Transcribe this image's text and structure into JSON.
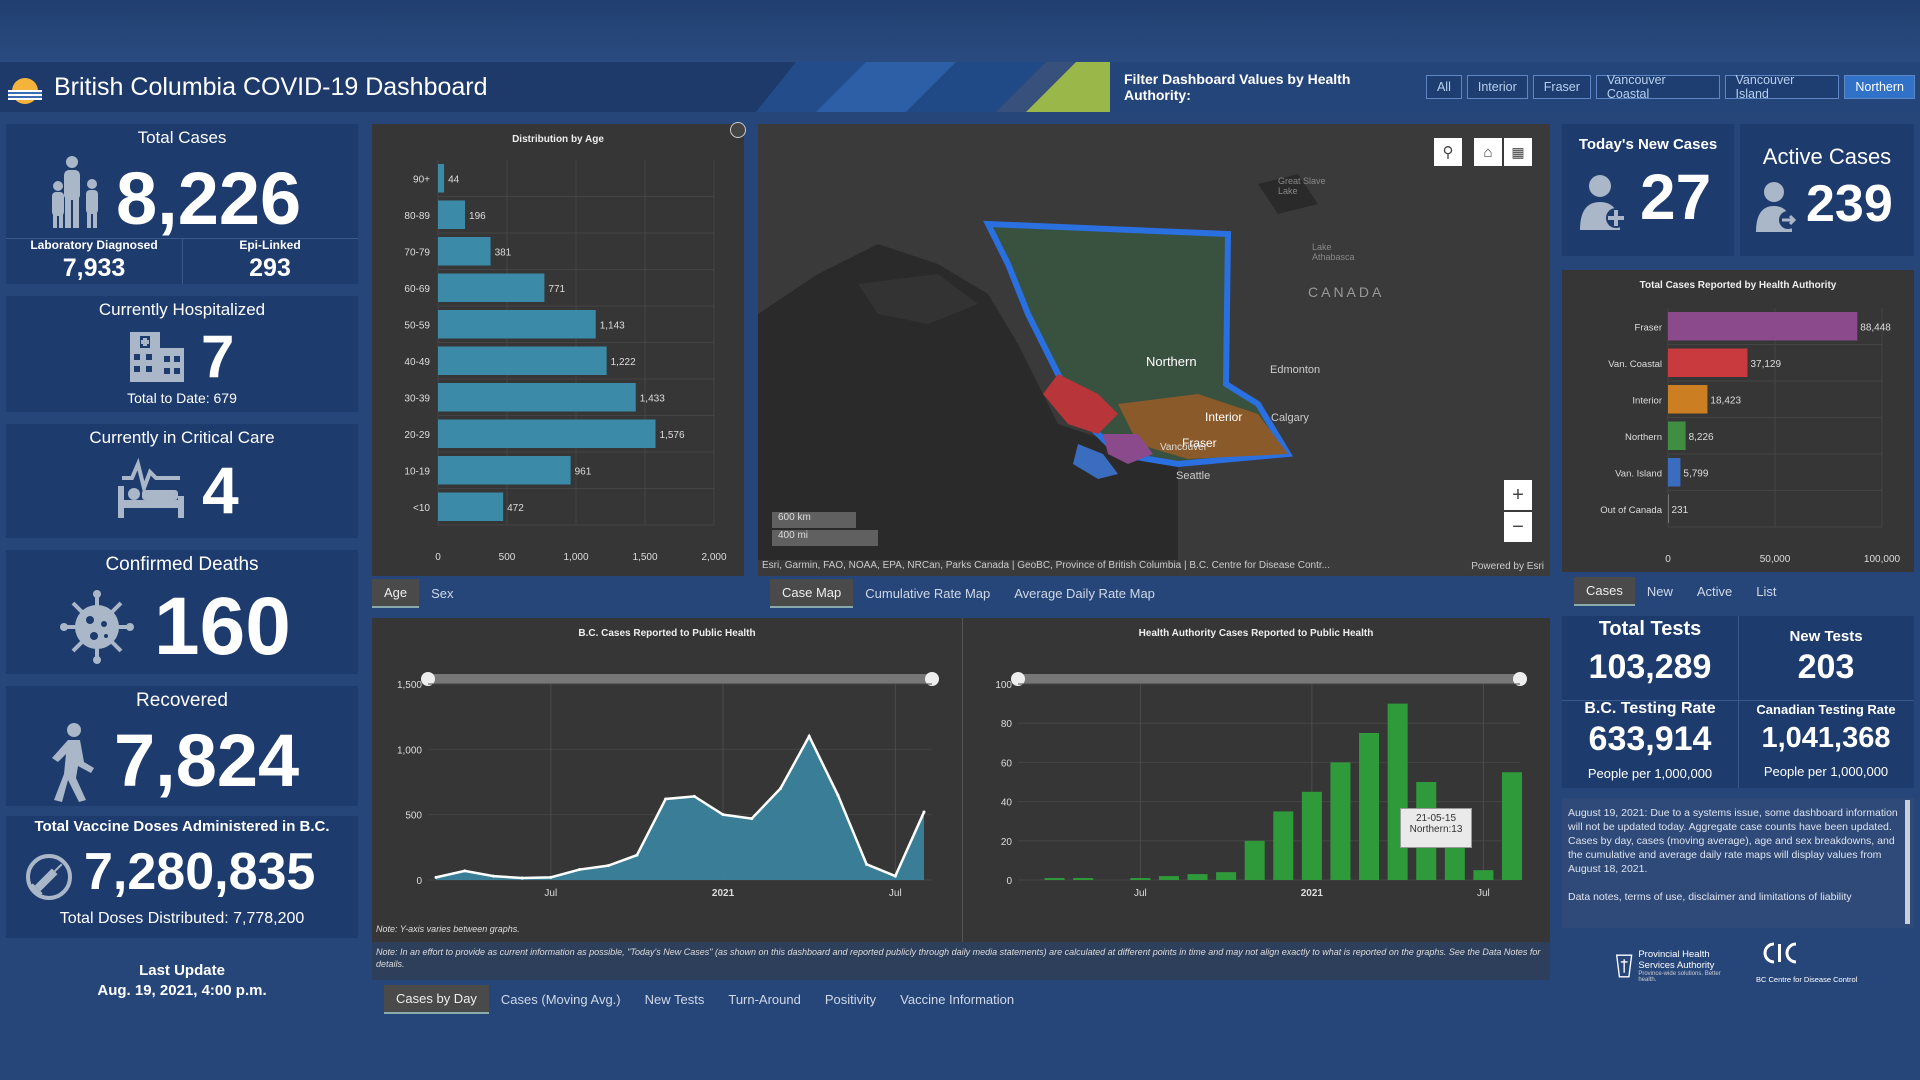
{
  "header": {
    "title": "British Columbia COVID-19 Dashboard",
    "filter_label": "Filter Dashboard Values by Health Authority:",
    "filters": [
      "All",
      "Interior",
      "Fraser",
      "Vancouver Coastal",
      "Vancouver Island",
      "Northern"
    ],
    "active_filter": "Northern"
  },
  "left": {
    "total_cases": {
      "label": "Total Cases",
      "value": "8,226",
      "lab_label": "Laboratory Diagnosed",
      "lab_value": "7,933",
      "epi_label": "Epi-Linked",
      "epi_value": "293"
    },
    "hospitalized": {
      "label": "Currently Hospitalized",
      "value": "7",
      "sub": "Total to Date: 679"
    },
    "critical": {
      "label": "Currently in Critical Care",
      "value": "4"
    },
    "deaths": {
      "label": "Confirmed Deaths",
      "value": "160"
    },
    "recovered": {
      "label": "Recovered",
      "value": "7,824"
    },
    "vaccine": {
      "label": "Total Vaccine Doses Administered in B.C.",
      "value": "7,280,835",
      "sub": "Total Doses Distributed: 7,778,200"
    },
    "last_update": {
      "label": "Last Update",
      "value": "Aug. 19, 2021, 4:00 p.m."
    }
  },
  "age_chart": {
    "tabs": [
      "Age",
      "Sex"
    ],
    "active_tab": "Age"
  },
  "map": {
    "labels": {
      "canada": "CANADA",
      "northern": "Northern",
      "interior": "Interior",
      "fraser": "Fraser",
      "vancouver": "Vancouver",
      "edmonton": "Edmonton",
      "calgary": "Calgary",
      "seattle": "Seattle",
      "great_slave": "Great Slave Lake",
      "athabasca": "Lake Athabasca"
    },
    "scale_km": "600 km",
    "scale_mi": "400 mi",
    "attribution": "Esri, Garmin, FAO, NOAA, EPA, NRCan, Parks Canada | GeoBC, Province of British Columbia | B.C. Centre for Disease Contr...",
    "powered": "Powered by Esri",
    "tabs": [
      "Case Map",
      "Cumulative Rate Map",
      "Average Daily Rate Map"
    ],
    "active_tab": "Case Map"
  },
  "right": {
    "new_cases": {
      "label": "Today's New Cases",
      "value": "27"
    },
    "active_cases": {
      "label": "Active Cases",
      "value": "239"
    },
    "ha_tabs": [
      "Cases",
      "New",
      "Active",
      "List"
    ],
    "ha_active_tab": "Cases",
    "total_tests": {
      "label": "Total Tests",
      "value": "103,289"
    },
    "new_tests": {
      "label": "New Tests",
      "value": "203"
    },
    "bc_rate": {
      "label": "B.C. Testing Rate",
      "value": "633,914",
      "sub": "People per 1,000,000"
    },
    "cdn_rate": {
      "label": "Canadian Testing Rate",
      "value": "1,041,368",
      "sub": "People per 1,000,000"
    },
    "notice": "August 19, 2021: Due to a systems issue, some dashboard information will not be updated today. Aggregate case counts have been updated. Cases by day, cases (moving average), age and sex breakdowns, and the cumulative and average daily rate maps will display values from August 18, 2021.",
    "notice_link": "Data notes, terms of use, disclaimer and limitations of liability",
    "logo1": "Provincial Health Services Authority",
    "logo1_sub": "Province-wide solutions. Better health.",
    "logo2": "BC Centre for Disease Control"
  },
  "bottom": {
    "note1": "Note: Y-axis varies between graphs.",
    "note2": "Note: In an effort to provide as current information as possible, \"Today's New Cases\" (as shown on this dashboard and reported publicly through daily media statements) are calculated at different points in time and may not align exactly to what is reported on the graphs. See the Data Notes for details.",
    "tabs": [
      "Cases by Day",
      "Cases (Moving Avg.)",
      "New Tests",
      "Turn-Around",
      "Positivity",
      "Vaccine Information"
    ],
    "active_tab": "Cases by Day",
    "tooltip_date": "21-05-15",
    "tooltip_value": "Northern:13"
  },
  "chart_data": [
    {
      "type": "bar",
      "title": "Distribution by Age",
      "categories": [
        "90+",
        "80-89",
        "70-79",
        "60-69",
        "50-59",
        "40-49",
        "30-39",
        "20-29",
        "10-19",
        "<10"
      ],
      "values": [
        44,
        196,
        381,
        771,
        1143,
        1222,
        1433,
        1576,
        961,
        472
      ],
      "labels": [
        "44",
        "196",
        "381",
        "771",
        "1,143",
        "1,222",
        "1,433",
        "1,576",
        "961",
        "472"
      ],
      "xlim": [
        0,
        2000
      ],
      "xticks": [
        "0",
        "500",
        "1,000",
        "1,500",
        "2,000"
      ],
      "orientation": "horizontal",
      "color": "#3b8aa8"
    },
    {
      "type": "bar",
      "title": "Total Cases Reported by Health Authority",
      "categories": [
        "Fraser",
        "Van. Coastal",
        "Interior",
        "Northern",
        "Van. Island",
        "Out of Canada"
      ],
      "values": [
        88448,
        37129,
        18423,
        8226,
        5799,
        231
      ],
      "labels": [
        "88,448",
        "37,129",
        "18,423",
        "8,226",
        "5,799",
        "231"
      ],
      "colors": [
        "#8a4a8c",
        "#c93a3f",
        "#cc7f22",
        "#3f8e42",
        "#3a6dbf",
        "#777777"
      ],
      "xlim": [
        0,
        100000
      ],
      "xticks": [
        "0",
        "50,000",
        "100,000"
      ],
      "orientation": "horizontal"
    },
    {
      "type": "area",
      "title": "B.C. Cases Reported to Public Health",
      "x": [
        "2020-03",
        "2020-04",
        "2020-05",
        "2020-06",
        "2020-07",
        "2020-08",
        "2020-09",
        "2020-10",
        "2020-11",
        "2020-12",
        "2021-01",
        "2021-02",
        "2021-03",
        "2021-04",
        "2021-05",
        "2021-06",
        "2021-07",
        "2021-08"
      ],
      "values": [
        20,
        70,
        30,
        15,
        20,
        80,
        110,
        190,
        620,
        640,
        500,
        470,
        700,
        1100,
        650,
        120,
        30,
        520
      ],
      "ylim": [
        0,
        1500
      ],
      "yticks": [
        "0",
        "500",
        "1,000",
        "1,500"
      ],
      "xticks": [
        "Jul",
        "2021",
        "Jul"
      ],
      "color": "#3b8aa8"
    },
    {
      "type": "bar",
      "title": "Health Authority Cases Reported to Public Health",
      "x": [
        "2020-03",
        "2020-04",
        "2020-05",
        "2020-06",
        "2020-07",
        "2020-08",
        "2020-09",
        "2020-10",
        "2020-11",
        "2020-12",
        "2021-01",
        "2021-02",
        "2021-03",
        "2021-04",
        "2021-05",
        "2021-06",
        "2021-07",
        "2021-08"
      ],
      "values": [
        0,
        1,
        1,
        0,
        1,
        2,
        3,
        4,
        20,
        35,
        45,
        60,
        75,
        90,
        50,
        18,
        5,
        55
      ],
      "ylim": [
        0,
        100
      ],
      "yticks": [
        "0",
        "20",
        "40",
        "60",
        "80",
        "100"
      ],
      "xticks": [
        "Jul",
        "2021",
        "Jul"
      ],
      "color": "#2f9a3a"
    }
  ]
}
